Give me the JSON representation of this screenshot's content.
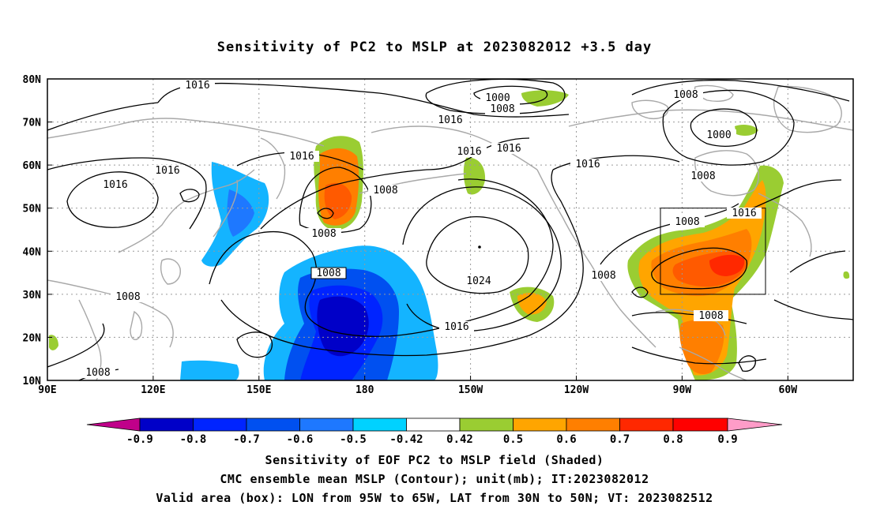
{
  "title": "Sensitivity of PC2 to MSLP at 2023082012 +3.5 day",
  "lat_labels": [
    "80N",
    "70N",
    "60N",
    "50N",
    "40N",
    "30N",
    "20N",
    "10N"
  ],
  "lon_labels": [
    "90E",
    "120E",
    "150E",
    "180",
    "150W",
    "120W",
    "90W",
    "60W"
  ],
  "contour_labels": [
    {
      "text": "1016"
    },
    {
      "text": "1016"
    },
    {
      "text": "1016"
    },
    {
      "text": "1016"
    },
    {
      "text": "1000"
    },
    {
      "text": "1008"
    },
    {
      "text": "1016"
    },
    {
      "text": "1016"
    },
    {
      "text": "1016"
    },
    {
      "text": "1008"
    },
    {
      "text": "1000"
    },
    {
      "text": "1008"
    },
    {
      "text": "1008"
    },
    {
      "text": "1016"
    },
    {
      "text": "1016"
    },
    {
      "text": "1008"
    },
    {
      "text": "1008"
    },
    {
      "text": "1008"
    },
    {
      "text": "1008"
    },
    {
      "text": "1024"
    },
    {
      "text": "1016"
    },
    {
      "text": "1008"
    },
    {
      "text": "1008"
    },
    {
      "text": "1008"
    }
  ],
  "colorbar": {
    "colors": [
      "#c0008a",
      "#0000c8",
      "#0024ff",
      "#0050f0",
      "#1e78ff",
      "#14b4ff",
      "#00d2ff",
      "#ffffff",
      "#9acd32",
      "#ffa500",
      "#ff7f00",
      "#ff5a00",
      "#ff2800",
      "#ff0000",
      "#ff9cc8"
    ],
    "labels": [
      "-0.9",
      "-0.8",
      "-0.7",
      "-0.6",
      "-0.5",
      "-0.42",
      "0.42",
      "0.5",
      "0.6",
      "0.7",
      "0.8",
      "0.9"
    ]
  },
  "legend": {
    "line1": "Sensitivity of EOF PC2 to MSLP field (Shaded)",
    "line2": "CMC ensemble mean MSLP (Contour); unit(mb); IT:2023082012",
    "line3": "Valid area (box): LON from 95W to 65W, LAT from 30N to 50N; VT: 2023082512"
  },
  "valid_box": {
    "lon_min": -95,
    "lon_max": -65,
    "lat_min": 30,
    "lat_max": 50
  }
}
